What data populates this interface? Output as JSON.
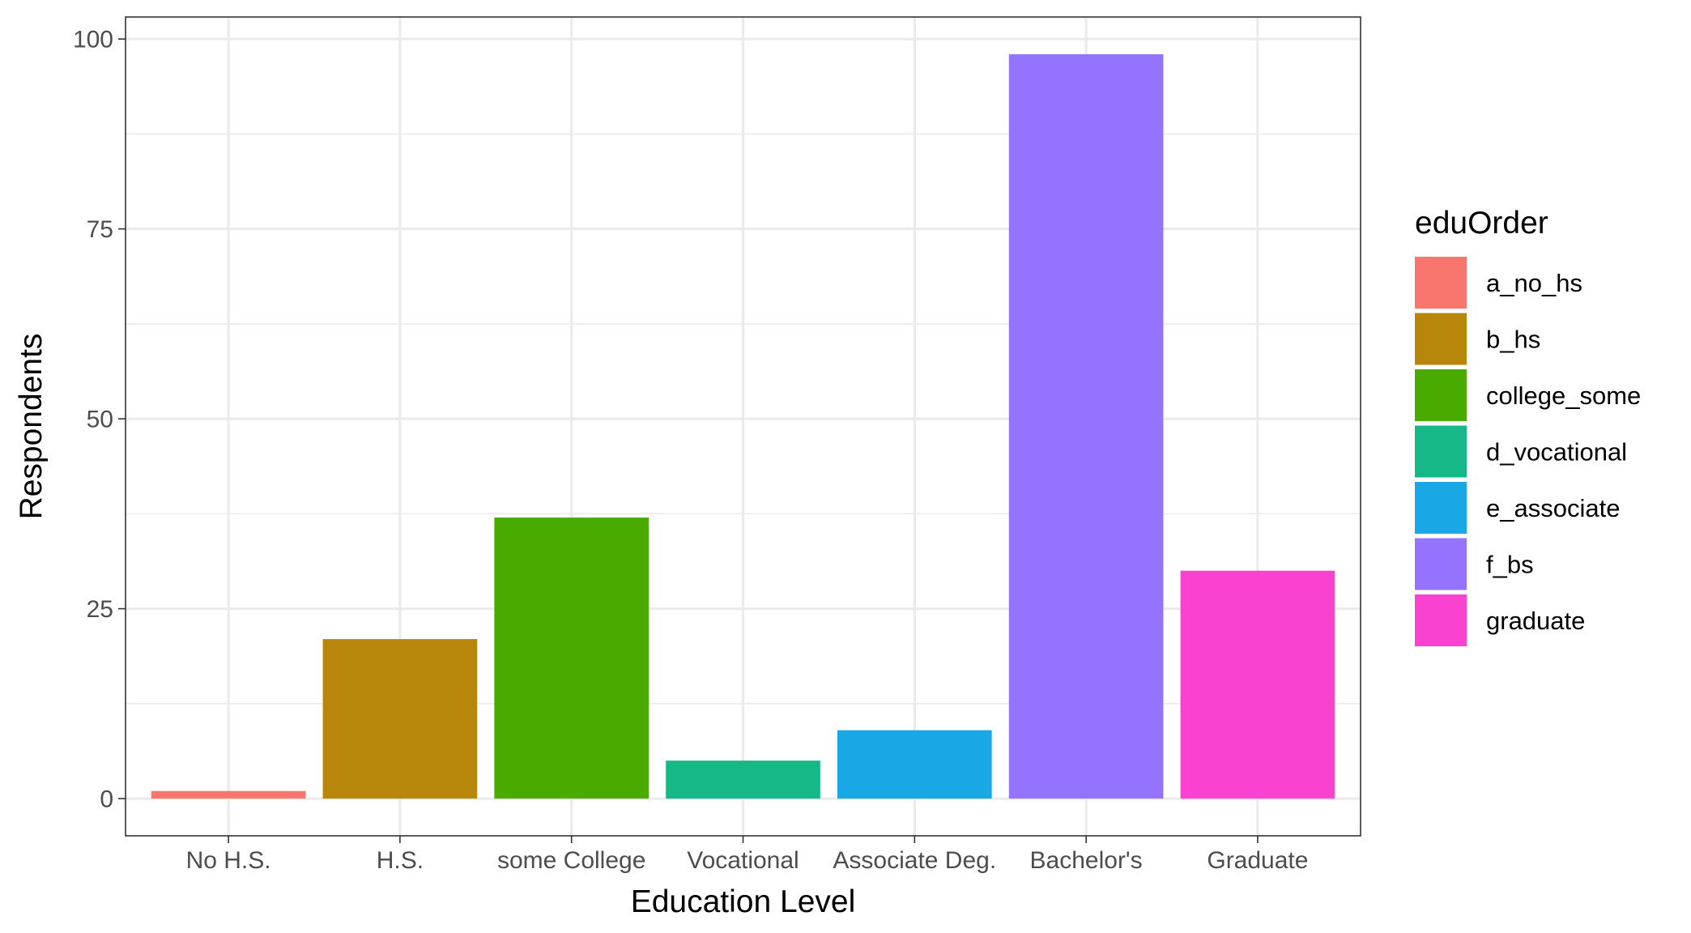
{
  "chart_data": {
    "type": "bar",
    "categories": [
      "No H.S.",
      "H.S.",
      "some College",
      "Vocational",
      "Associate Deg.",
      "Bachelor's",
      "Graduate"
    ],
    "values": [
      1,
      21,
      37,
      5,
      9,
      98,
      30
    ],
    "fill_groups": [
      "a_no_hs",
      "b_hs",
      "college_some",
      "d_vocational",
      "e_associate",
      "f_bs",
      "graduate"
    ],
    "colors": [
      "#F8766D",
      "#B8860B",
      "#49AA00",
      "#17B887",
      "#1AA7E6",
      "#9474FF",
      "#F942CF"
    ],
    "title": "",
    "xlabel": "Education Level",
    "ylabel": "Respondents",
    "ylim": [
      -4.9,
      102.9
    ],
    "yticks": [
      0,
      25,
      50,
      75,
      100
    ],
    "grid": true,
    "legend": {
      "title": "eduOrder",
      "position": "right",
      "entries": [
        "a_no_hs",
        "b_hs",
        "college_some",
        "d_vocational",
        "e_associate",
        "f_bs",
        "graduate"
      ]
    }
  }
}
